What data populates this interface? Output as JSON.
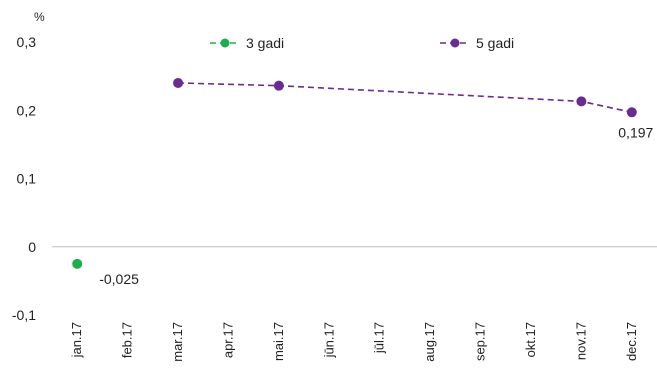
{
  "chart_data": {
    "type": "line",
    "y_unit": "%",
    "ylim": [
      -0.1,
      0.3
    ],
    "yticks": [
      "0,3",
      "0,2",
      "0,1",
      "0",
      "-0,1"
    ],
    "ytick_values": [
      0.3,
      0.2,
      0.1,
      0,
      -0.1
    ],
    "categories": [
      "jan.17",
      "feb.17",
      "mar.17",
      "apr.17",
      "mai.17",
      "jūn.17",
      "jūl.17",
      "aug.17",
      "sep.17",
      "okt.17",
      "nov.17",
      "dec.17"
    ],
    "grid": false,
    "legend_position": "top",
    "series": [
      {
        "name": "3 gadi",
        "color": "#1fad4e",
        "values": [
          -0.025,
          null,
          null,
          null,
          null,
          null,
          null,
          null,
          null,
          null,
          null,
          null
        ],
        "labels": [
          {
            "index": 0,
            "text": "-0,025"
          }
        ]
      },
      {
        "name": "5 gadi",
        "color": "#6a2c91",
        "values": [
          null,
          null,
          0.24,
          null,
          0.236,
          null,
          null,
          null,
          null,
          null,
          0.213,
          0.197
        ],
        "labels": [
          {
            "index": 11,
            "text": "0,197"
          }
        ]
      }
    ]
  }
}
